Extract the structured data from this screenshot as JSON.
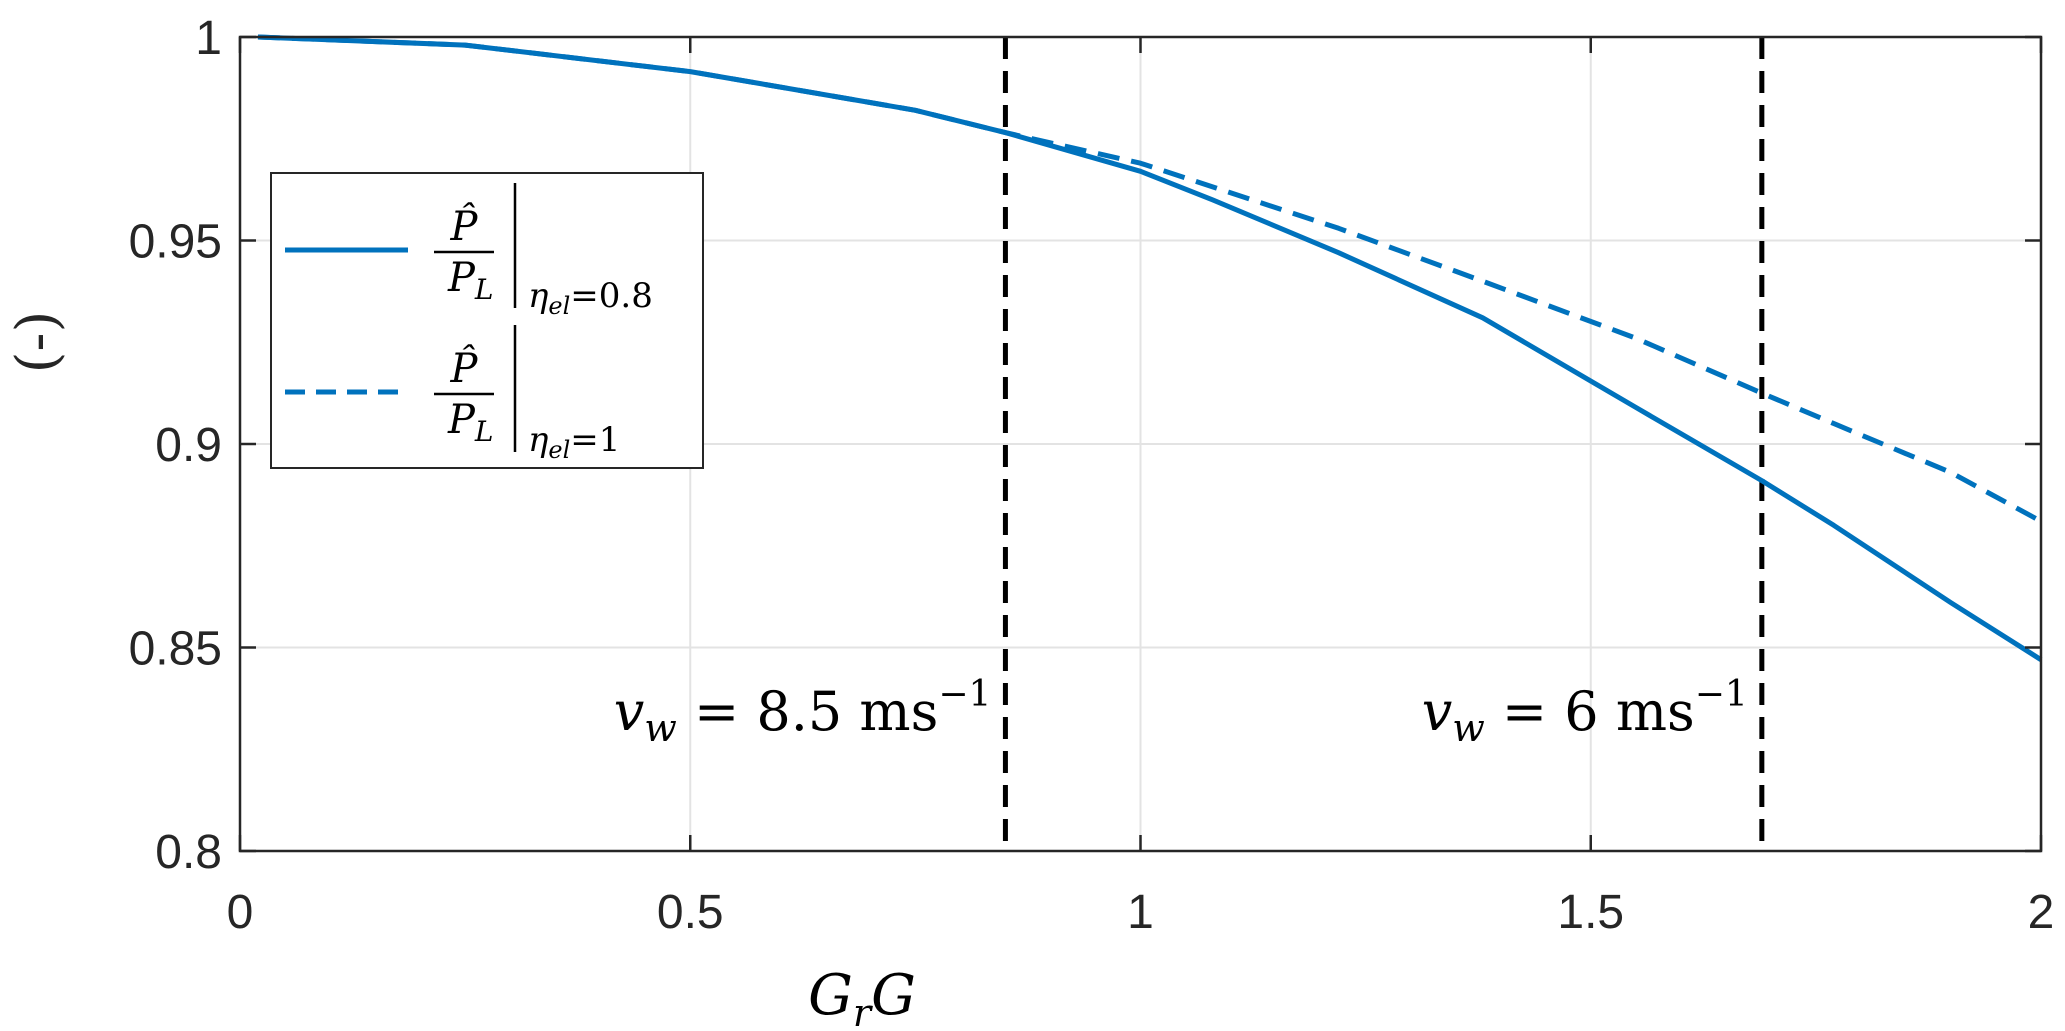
{
  "chart_data": {
    "type": "line",
    "xlabel": {
      "base": "G",
      "sub": "r",
      "tail": "G"
    },
    "ylabel": "(-)",
    "xlim": [
      0,
      2
    ],
    "ylim": [
      0.8,
      1
    ],
    "xticks": [
      0,
      0.5,
      1,
      1.5,
      2
    ],
    "xtick_labels": [
      "0",
      "0.5",
      "1",
      "1.5",
      "2"
    ],
    "yticks": [
      0.8,
      0.85,
      0.9,
      0.95,
      1
    ],
    "ytick_labels": [
      "0.8",
      "0.85",
      "0.9",
      "0.95",
      "1"
    ],
    "grid": true,
    "legend_position": "upper-left",
    "colors": {
      "series": "#0072BD",
      "vline": "#000000",
      "grid": "#e3e3e3",
      "axes": "#262626"
    },
    "series": [
      {
        "name": "Ĥ/P_L |η_el=0.8",
        "legend": {
          "num": "P̂",
          "den_base": "P",
          "den_sub": "L",
          "cond_base": "η",
          "cond_sub": "el",
          "cond_value": "=0.8"
        },
        "style": "solid",
        "x": [
          0.02,
          0.25,
          0.5,
          0.75,
          0.85,
          1.0,
          1.08,
          1.22,
          1.38,
          1.55,
          1.69,
          1.77,
          1.9,
          2.0
        ],
        "y": [
          1.0,
          0.998,
          0.9915,
          0.982,
          0.9765,
          0.967,
          0.96,
          0.947,
          0.931,
          0.909,
          0.891,
          0.88,
          0.861,
          0.847
        ]
      },
      {
        "name": "Ĥ/P_L |η_el=1",
        "legend": {
          "num": "P̂",
          "den_base": "P",
          "den_sub": "L",
          "cond_base": "η",
          "cond_sub": "el",
          "cond_value": "=1"
        },
        "style": "dashed",
        "x": [
          0.02,
          0.25,
          0.5,
          0.75,
          0.85,
          1.0,
          1.22,
          1.38,
          1.55,
          1.69,
          1.77,
          1.9,
          2.0
        ],
        "y": [
          1.0,
          0.998,
          0.9915,
          0.982,
          0.9765,
          0.969,
          0.953,
          0.94,
          0.926,
          0.9125,
          0.905,
          0.893,
          0.881
        ]
      }
    ],
    "vlines": [
      {
        "x": 0.85,
        "label": {
          "var": "v",
          "sub": "w",
          "eq": " = 8.5 ",
          "unit": "ms",
          "exp": "−1"
        }
      },
      {
        "x": 1.69,
        "label": {
          "var": "v",
          "sub": "w",
          "eq": " = 6 ",
          "unit": "ms",
          "exp": "−1"
        }
      }
    ]
  }
}
